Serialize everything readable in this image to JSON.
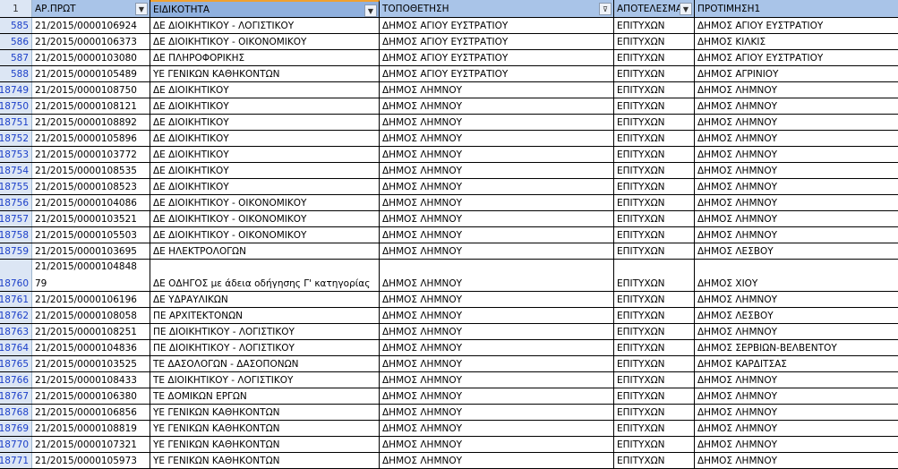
{
  "header": {
    "row_number": "1",
    "columns": [
      "ΑΡ.ΠΡΩΤ",
      "ΕΙΔΙΚΟΤΗΤΑ",
      "ΤΟΠΟΘΕΤΗΣΗ",
      "ΑΠΟΤΕΛΕΣΜΑ",
      "ΠΡΟΤΙΜΗΣΗ1"
    ],
    "filter_icons": [
      "dropdown-arrow",
      "dropdown-arrow",
      "filter-active",
      "dropdown-arrow",
      "none"
    ]
  },
  "rows": [
    {
      "n": "585",
      "a": "21/2015/0000106924",
      "b": "ΔΕ ΔΙΟΙΚΗΤΙΚΟΥ - ΛΟΓΙΣΤΙΚΟΥ",
      "c": "ΔΗΜΟΣ ΑΓΙΟΥ ΕΥΣΤΡΑΤΙΟΥ",
      "d": "ΕΠΙΤΥΧΩΝ",
      "e": "ΔΗΜΟΣ ΑΓΙΟΥ ΕΥΣΤΡΑΤΙΟΥ"
    },
    {
      "n": "586",
      "a": "21/2015/0000106373",
      "b": "ΔΕ ΔΙΟΙΚΗΤΙΚΟΥ - ΟΙΚΟΝΟΜΙΚΟΥ",
      "c": "ΔΗΜΟΣ ΑΓΙΟΥ ΕΥΣΤΡΑΤΙΟΥ",
      "d": "ΕΠΙΤΥΧΩΝ",
      "e": "ΔΗΜΟΣ ΚΙΛΚΙΣ"
    },
    {
      "n": "587",
      "a": "21/2015/0000103080",
      "b": "ΔΕ ΠΛΗΡΟΦΟΡΙΚΗΣ",
      "c": "ΔΗΜΟΣ ΑΓΙΟΥ ΕΥΣΤΡΑΤΙΟΥ",
      "d": "ΕΠΙΤΥΧΩΝ",
      "e": "ΔΗΜΟΣ ΑΓΙΟΥ ΕΥΣΤΡΑΤΙΟΥ"
    },
    {
      "n": "588",
      "a": "21/2015/0000105489",
      "b": "ΥΕ ΓΕΝΙΚΩΝ ΚΑΘΗΚΟΝΤΩΝ",
      "c": "ΔΗΜΟΣ ΑΓΙΟΥ ΕΥΣΤΡΑΤΙΟΥ",
      "d": "ΕΠΙΤΥΧΩΝ",
      "e": "ΔΗΜΟΣ ΑΓΡΙΝΙΟΥ"
    },
    {
      "n": "18749",
      "a": "21/2015/0000108750",
      "b": "ΔΕ ΔΙΟΙΚΗΤΙΚΟΥ",
      "c": "ΔΗΜΟΣ ΛΗΜΝΟΥ",
      "d": "ΕΠΙΤΥΧΩΝ",
      "e": "ΔΗΜΟΣ ΛΗΜΝΟΥ"
    },
    {
      "n": "18750",
      "a": "21/2015/0000108121",
      "b": "ΔΕ ΔΙΟΙΚΗΤΙΚΟΥ",
      "c": "ΔΗΜΟΣ ΛΗΜΝΟΥ",
      "d": "ΕΠΙΤΥΧΩΝ",
      "e": "ΔΗΜΟΣ ΛΗΜΝΟΥ"
    },
    {
      "n": "18751",
      "a": "21/2015/0000108892",
      "b": "ΔΕ ΔΙΟΙΚΗΤΙΚΟΥ",
      "c": "ΔΗΜΟΣ ΛΗΜΝΟΥ",
      "d": "ΕΠΙΤΥΧΩΝ",
      "e": "ΔΗΜΟΣ ΛΗΜΝΟΥ"
    },
    {
      "n": "18752",
      "a": "21/2015/0000105896",
      "b": "ΔΕ ΔΙΟΙΚΗΤΙΚΟΥ",
      "c": "ΔΗΜΟΣ ΛΗΜΝΟΥ",
      "d": "ΕΠΙΤΥΧΩΝ",
      "e": "ΔΗΜΟΣ ΛΗΜΝΟΥ"
    },
    {
      "n": "18753",
      "a": "21/2015/0000103772",
      "b": "ΔΕ ΔΙΟΙΚΗΤΙΚΟΥ",
      "c": "ΔΗΜΟΣ ΛΗΜΝΟΥ",
      "d": "ΕΠΙΤΥΧΩΝ",
      "e": "ΔΗΜΟΣ ΛΗΜΝΟΥ"
    },
    {
      "n": "18754",
      "a": "21/2015/0000108535",
      "b": "ΔΕ ΔΙΟΙΚΗΤΙΚΟΥ",
      "c": "ΔΗΜΟΣ ΛΗΜΝΟΥ",
      "d": "ΕΠΙΤΥΧΩΝ",
      "e": "ΔΗΜΟΣ ΛΗΜΝΟΥ"
    },
    {
      "n": "18755",
      "a": "21/2015/0000108523",
      "b": "ΔΕ ΔΙΟΙΚΗΤΙΚΟΥ",
      "c": "ΔΗΜΟΣ ΛΗΜΝΟΥ",
      "d": "ΕΠΙΤΥΧΩΝ",
      "e": "ΔΗΜΟΣ ΛΗΜΝΟΥ"
    },
    {
      "n": "18756",
      "a": "21/2015/0000104086",
      "b": "ΔΕ ΔΙΟΙΚΗΤΙΚΟΥ - ΟΙΚΟΝΟΜΙΚΟΥ",
      "c": "ΔΗΜΟΣ ΛΗΜΝΟΥ",
      "d": "ΕΠΙΤΥΧΩΝ",
      "e": "ΔΗΜΟΣ ΛΗΜΝΟΥ"
    },
    {
      "n": "18757",
      "a": "21/2015/0000103521",
      "b": "ΔΕ ΔΙΟΙΚΗΤΙΚΟΥ - ΟΙΚΟΝΟΜΙΚΟΥ",
      "c": "ΔΗΜΟΣ ΛΗΜΝΟΥ",
      "d": "ΕΠΙΤΥΧΩΝ",
      "e": "ΔΗΜΟΣ ΛΗΜΝΟΥ"
    },
    {
      "n": "18758",
      "a": "21/2015/0000105503",
      "b": "ΔΕ ΔΙΟΙΚΗΤΙΚΟΥ - ΟΙΚΟΝΟΜΙΚΟΥ",
      "c": "ΔΗΜΟΣ ΛΗΜΝΟΥ",
      "d": "ΕΠΙΤΥΧΩΝ",
      "e": "ΔΗΜΟΣ ΛΗΜΝΟΥ"
    },
    {
      "n": "18759",
      "a": "21/2015/0000103695",
      "b": "ΔΕ ΗΛΕΚΤΡΟΛΟΓΩΝ",
      "c": "ΔΗΜΟΣ ΛΗΜΝΟΥ",
      "d": "ΕΠΙΤΥΧΩΝ",
      "e": "ΔΗΜΟΣ ΛΕΣΒΟΥ"
    },
    {
      "n": "18760",
      "a": "21/2015/0000104848",
      "a2": "79",
      "b": "ΔΕ ΟΔΗΓΟΣ  με  άδεια οδήγησης Γ' κατηγορίας",
      "c": "ΔΗΜΟΣ ΛΗΜΝΟΥ",
      "d": "ΕΠΙΤΥΧΩΝ",
      "e": "ΔΗΜΟΣ ΧΙΟΥ",
      "tall": true
    },
    {
      "n": "18761",
      "a": "21/2015/0000106196",
      "b": "ΔΕ ΥΔΡΑΥΛΙΚΩΝ",
      "c": "ΔΗΜΟΣ ΛΗΜΝΟΥ",
      "d": "ΕΠΙΤΥΧΩΝ",
      "e": "ΔΗΜΟΣ ΛΗΜΝΟΥ"
    },
    {
      "n": "18762",
      "a": "21/2015/0000108058",
      "b": "ΠΕ ΑΡΧΙΤΕΚΤΟΝΩΝ",
      "c": "ΔΗΜΟΣ ΛΗΜΝΟΥ",
      "d": "ΕΠΙΤΥΧΩΝ",
      "e": "ΔΗΜΟΣ ΛΕΣΒΟΥ"
    },
    {
      "n": "18763",
      "a": "21/2015/0000108251",
      "b": "ΠΕ ΔΙΟΙΚΗΤΙΚΟΥ - ΛΟΓΙΣΤΙΚΟΥ",
      "c": "ΔΗΜΟΣ ΛΗΜΝΟΥ",
      "d": "ΕΠΙΤΥΧΩΝ",
      "e": "ΔΗΜΟΣ ΛΗΜΝΟΥ"
    },
    {
      "n": "18764",
      "a": "21/2015/0000104836",
      "b": "ΠΕ ΔΙΟΙΚΗΤΙΚΟΥ - ΛΟΓΙΣΤΙΚΟΥ",
      "c": "ΔΗΜΟΣ ΛΗΜΝΟΥ",
      "d": "ΕΠΙΤΥΧΩΝ",
      "e": "ΔΗΜΟΣ ΣΕΡΒΙΩΝ-ΒΕΛΒΕΝΤΟΥ"
    },
    {
      "n": "18765",
      "a": "21/2015/0000103525",
      "b": "ΤΕ ΔΑΣΟΛΟΓΩΝ - ΔΑΣΟΠΟΝΩΝ",
      "c": "ΔΗΜΟΣ ΛΗΜΝΟΥ",
      "d": "ΕΠΙΤΥΧΩΝ",
      "e": "ΔΗΜΟΣ ΚΑΡΔΙΤΣΑΣ"
    },
    {
      "n": "18766",
      "a": "21/2015/0000108433",
      "b": "ΤΕ ΔΙΟΙΚΗΤΙΚΟΥ - ΛΟΓΙΣΤΙΚΟΥ",
      "c": "ΔΗΜΟΣ ΛΗΜΝΟΥ",
      "d": "ΕΠΙΤΥΧΩΝ",
      "e": "ΔΗΜΟΣ ΛΗΜΝΟΥ"
    },
    {
      "n": "18767",
      "a": "21/2015/0000106380",
      "b": "ΤΕ ΔΟΜΙΚΩΝ ΕΡΓΩΝ",
      "c": "ΔΗΜΟΣ ΛΗΜΝΟΥ",
      "d": "ΕΠΙΤΥΧΩΝ",
      "e": "ΔΗΜΟΣ ΛΗΜΝΟΥ"
    },
    {
      "n": "18768",
      "a": "21/2015/0000106856",
      "b": "ΥΕ ΓΕΝΙΚΩΝ ΚΑΘΗΚΟΝΤΩΝ",
      "c": "ΔΗΜΟΣ ΛΗΜΝΟΥ",
      "d": "ΕΠΙΤΥΧΩΝ",
      "e": "ΔΗΜΟΣ ΛΗΜΝΟΥ"
    },
    {
      "n": "18769",
      "a": "21/2015/0000108819",
      "b": "ΥΕ ΓΕΝΙΚΩΝ ΚΑΘΗΚΟΝΤΩΝ",
      "c": "ΔΗΜΟΣ ΛΗΜΝΟΥ",
      "d": "ΕΠΙΤΥΧΩΝ",
      "e": "ΔΗΜΟΣ ΛΗΜΝΟΥ"
    },
    {
      "n": "18770",
      "a": "21/2015/0000107321",
      "b": "ΥΕ ΓΕΝΙΚΩΝ ΚΑΘΗΚΟΝΤΩΝ",
      "c": "ΔΗΜΟΣ ΛΗΜΝΟΥ",
      "d": "ΕΠΙΤΥΧΩΝ",
      "e": "ΔΗΜΟΣ ΛΗΜΝΟΥ"
    },
    {
      "n": "18771",
      "a": "21/2015/0000105973",
      "b": "ΥΕ ΓΕΝΙΚΩΝ ΚΑΘΗΚΟΝΤΩΝ",
      "c": "ΔΗΜΟΣ ΛΗΜΝΟΥ",
      "d": "ΕΠΙΤΥΧΩΝ",
      "e": "ΔΗΜΟΣ ΛΗΜΝΟΥ"
    }
  ]
}
